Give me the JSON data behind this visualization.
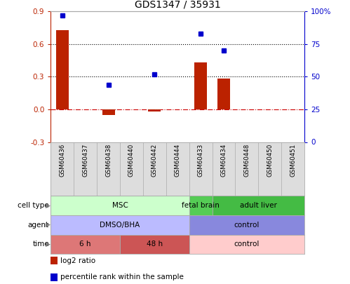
{
  "title": "GDS1347 / 35931",
  "samples": [
    "GSM60436",
    "GSM60437",
    "GSM60438",
    "GSM60440",
    "GSM60442",
    "GSM60444",
    "GSM60433",
    "GSM60434",
    "GSM60448",
    "GSM60450",
    "GSM60451"
  ],
  "log2_ratio": [
    0.73,
    0.0,
    -0.05,
    0.0,
    -0.02,
    0.0,
    0.43,
    0.28,
    0.0,
    0.0,
    0.0
  ],
  "percentile_rank": [
    97,
    0,
    44,
    0,
    52,
    0,
    83,
    70,
    0,
    0,
    0
  ],
  "bar_color": "#bb2200",
  "dot_color": "#0000cc",
  "ylim_left": [
    -0.3,
    0.9
  ],
  "ylim_right": [
    0,
    100
  ],
  "yticks_left": [
    -0.3,
    0.0,
    0.3,
    0.6,
    0.9
  ],
  "yticks_right": [
    0,
    25,
    50,
    75,
    100
  ],
  "ytick_labels_right": [
    "0",
    "25",
    "50",
    "75",
    "100%"
  ],
  "hline_y": [
    0.3,
    0.6
  ],
  "zero_line_y": 0.0,
  "zero_line_color": "#cc0000",
  "cell_type_groups": [
    {
      "label": "MSC",
      "start": 0,
      "end": 6,
      "color": "#ccffcc"
    },
    {
      "label": "fetal brain",
      "start": 6,
      "end": 7,
      "color": "#55cc55"
    },
    {
      "label": "adult liver",
      "start": 7,
      "end": 11,
      "color": "#44bb44"
    }
  ],
  "agent_groups": [
    {
      "label": "DMSO/BHA",
      "start": 0,
      "end": 6,
      "color": "#bbbbff"
    },
    {
      "label": "control",
      "start": 6,
      "end": 11,
      "color": "#8888dd"
    }
  ],
  "time_groups": [
    {
      "label": "6 h",
      "start": 0,
      "end": 3,
      "color": "#dd7777"
    },
    {
      "label": "48 h",
      "start": 3,
      "end": 6,
      "color": "#cc5555"
    },
    {
      "label": "control",
      "start": 6,
      "end": 11,
      "color": "#ffcccc"
    }
  ],
  "legend_items": [
    {
      "label": "log2 ratio",
      "color": "#bb2200"
    },
    {
      "label": "percentile rank within the sample",
      "color": "#0000cc"
    }
  ],
  "background_color": "#ffffff",
  "border_color": "#aaaaaa",
  "sample_bg": "#dddddd"
}
